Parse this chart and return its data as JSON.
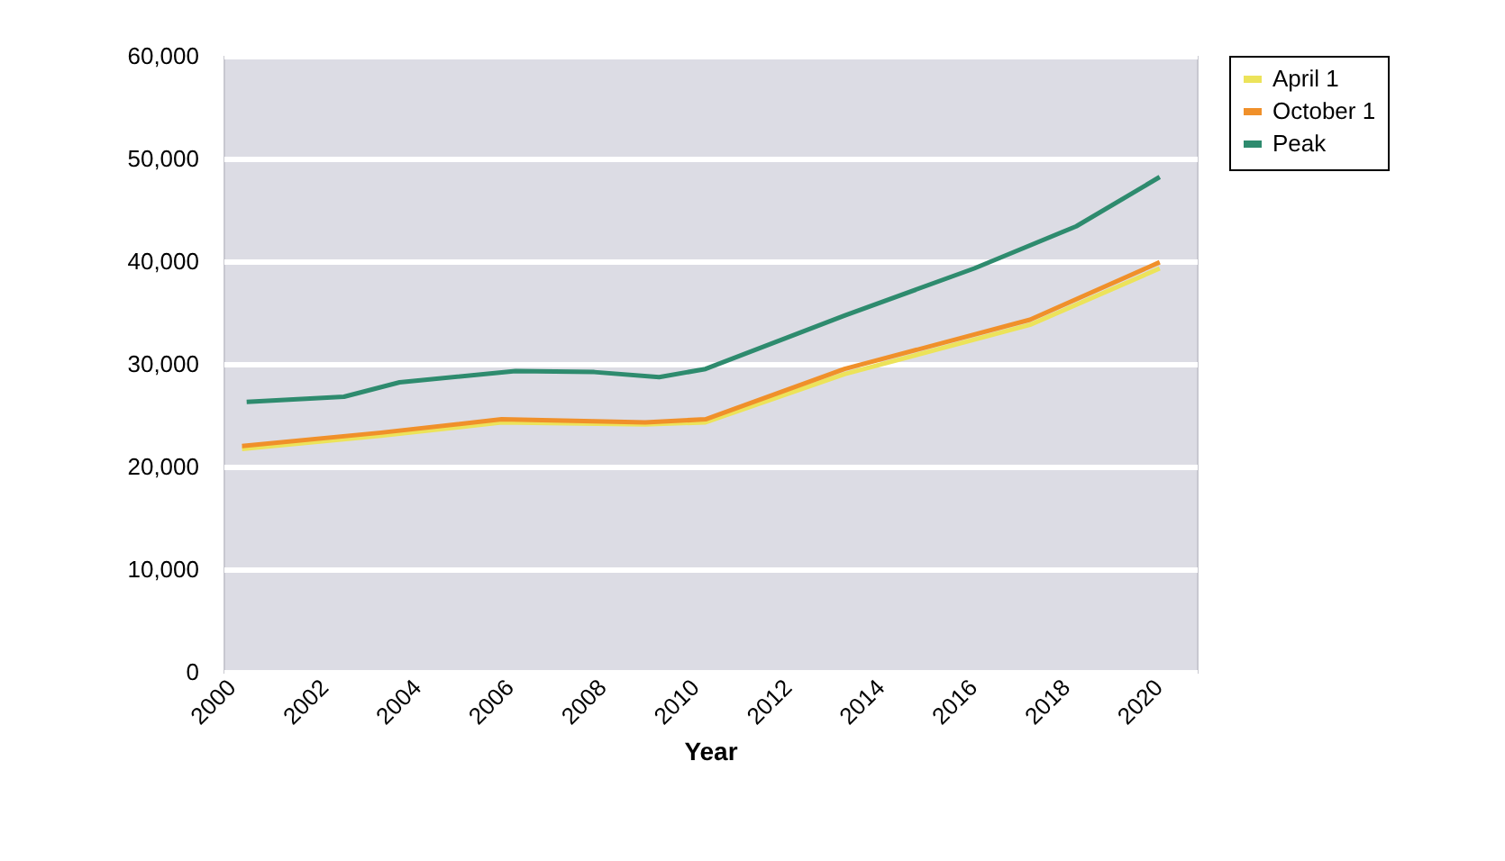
{
  "chart_data": {
    "type": "line",
    "xlabel": "Year",
    "xlim": [
      2000,
      2021
    ],
    "xticks": [
      2000,
      2002,
      2004,
      2006,
      2008,
      2010,
      2012,
      2014,
      2016,
      2018,
      2020
    ],
    "ylim": [
      0,
      60000
    ],
    "yticks": [
      {
        "value": 0,
        "label": "0"
      },
      {
        "value": 10000,
        "label": "10,000"
      },
      {
        "value": 20000,
        "label": "20,000"
      },
      {
        "value": 30000,
        "label": "30,000"
      },
      {
        "value": 40000,
        "label": "40,000"
      },
      {
        "value": 50000,
        "label": "50,000"
      },
      {
        "value": 60000,
        "label": "60,000"
      }
    ],
    "grid": "y",
    "legend": "right",
    "series": [
      {
        "name": "April 1",
        "color": "#ece35a",
        "x": [
          2000.4,
          2003.4,
          2006,
          2009.1,
          2010.4,
          2013.4,
          2017.4,
          2020.2
        ],
        "values": [
          21700,
          23000,
          24300,
          24100,
          24300,
          29000,
          33800,
          39300
        ]
      },
      {
        "name": "October 1",
        "color": "#f0902a",
        "x": [
          2000.4,
          2003.4,
          2006,
          2009.1,
          2010.4,
          2013.4,
          2017.4,
          2020.2
        ],
        "values": [
          22000,
          23300,
          24600,
          24300,
          24600,
          29500,
          34300,
          39900
        ]
      },
      {
        "name": "Peak",
        "color": "#2e8b6e",
        "x": [
          2000.5,
          2002.6,
          2003.8,
          2006.3,
          2008,
          2009.4,
          2010.4,
          2013.4,
          2016.2,
          2018.4,
          2020.2
        ],
        "values": [
          26300,
          26800,
          28200,
          29300,
          29200,
          28700,
          29500,
          34700,
          39300,
          43400,
          48200
        ]
      }
    ]
  }
}
